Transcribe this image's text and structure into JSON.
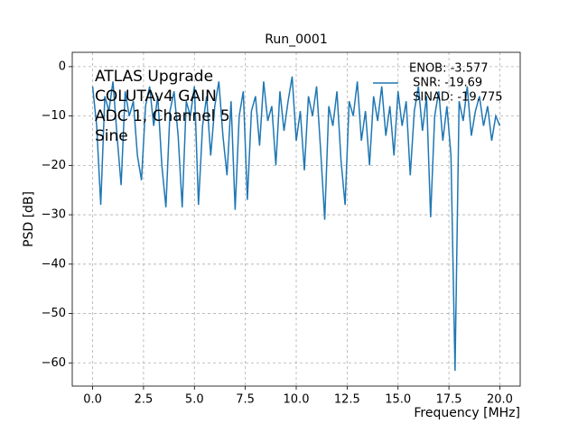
{
  "chart_data": {
    "type": "line",
    "title": "Run_0001",
    "x_label": "Frequency [MHz]",
    "y_label": "PSD [dB]",
    "annotation": [
      "ATLAS Upgrade",
      "COLUTAv4 GAIN",
      "ADC 1, Channel 5",
      "Sine"
    ],
    "x": [
      0.0,
      0.2,
      0.4,
      0.6,
      0.8,
      1.0,
      1.2,
      1.4,
      1.6,
      1.8,
      2.0,
      2.2,
      2.4,
      2.6,
      2.8,
      3.0,
      3.2,
      3.4,
      3.6,
      3.8,
      4.0,
      4.2,
      4.4,
      4.6,
      4.8,
      5.0,
      5.2,
      5.4,
      5.6,
      5.8,
      6.0,
      6.2,
      6.4,
      6.6,
      6.8,
      7.0,
      7.2,
      7.4,
      7.6,
      7.8,
      8.0,
      8.2,
      8.4,
      8.6,
      8.8,
      9.0,
      9.2,
      9.4,
      9.6,
      9.8,
      10.0,
      10.2,
      10.4,
      10.6,
      10.8,
      11.0,
      11.2,
      11.4,
      11.6,
      11.8,
      12.0,
      12.2,
      12.4,
      12.6,
      12.8,
      13.0,
      13.2,
      13.4,
      13.6,
      13.8,
      14.0,
      14.2,
      14.4,
      14.6,
      14.8,
      15.0,
      15.2,
      15.4,
      15.6,
      15.8,
      16.0,
      16.2,
      16.4,
      16.6,
      16.8,
      17.0,
      17.2,
      17.4,
      17.6,
      17.8,
      18.0,
      18.2,
      18.4,
      18.6,
      18.8,
      19.0,
      19.2,
      19.4,
      19.6,
      19.8,
      20.0
    ],
    "series": [
      {
        "name": [
          "ENOB: -3.577",
          " SNR: -19.69",
          " SINAD: -19.775"
        ],
        "color": "#1f77b4",
        "values": [
          -4,
          -12,
          -28,
          -6,
          -9,
          -3,
          -14,
          -24,
          -5,
          -10,
          -7,
          -18,
          -23,
          -8,
          -4,
          -12,
          -6,
          -20,
          -28.5,
          -9,
          -5,
          -14,
          -28.5,
          -7,
          -10,
          -4,
          -28,
          -12,
          -6,
          -18,
          -8,
          -3,
          -14,
          -22,
          -7,
          -29,
          -10,
          -5,
          -27,
          -9,
          -6,
          -16,
          -3,
          -11,
          -8,
          -20,
          -5,
          -13,
          -7,
          -2,
          -15,
          -9,
          -21,
          -6,
          -10,
          -4,
          -17,
          -31,
          -8,
          -12,
          -5,
          -19,
          -28,
          -7,
          -10,
          -3,
          -15,
          -9,
          -20,
          -6,
          -11,
          -4,
          -14,
          -8,
          -18,
          -5,
          -12,
          -7,
          -22,
          -9,
          -4,
          -13,
          -6,
          -30.5,
          -10,
          -5,
          -15,
          -8,
          -18,
          -61.6,
          -7,
          -11,
          -4,
          -14,
          -9,
          -6,
          -12,
          -8,
          -15,
          -10,
          -12
        ]
      }
    ],
    "xlim": [
      -1,
      21
    ],
    "ylim": [
      -64.7,
      2.9
    ],
    "xticks": [
      {
        "value": 0,
        "label": "0.0"
      },
      {
        "value": 2.5,
        "label": "2.5"
      },
      {
        "value": 5,
        "label": "5.0"
      },
      {
        "value": 7.5,
        "label": "7.5"
      },
      {
        "value": 10,
        "label": "10.0"
      },
      {
        "value": 12.5,
        "label": "12.5"
      },
      {
        "value": 15,
        "label": "15.0"
      },
      {
        "value": 17.5,
        "label": "17.5"
      },
      {
        "value": 20,
        "label": "20.0"
      }
    ],
    "yticks": [
      0,
      {
        "value": -10,
        "label": "−10"
      },
      {
        "value": -20,
        "label": "−20"
      },
      {
        "value": -30,
        "label": "−30"
      },
      {
        "value": -40,
        "label": "−40"
      },
      {
        "value": -50,
        "label": "−50"
      },
      {
        "value": -60,
        "label": "−60"
      }
    ],
    "grid": true,
    "legend": "upper right"
  }
}
